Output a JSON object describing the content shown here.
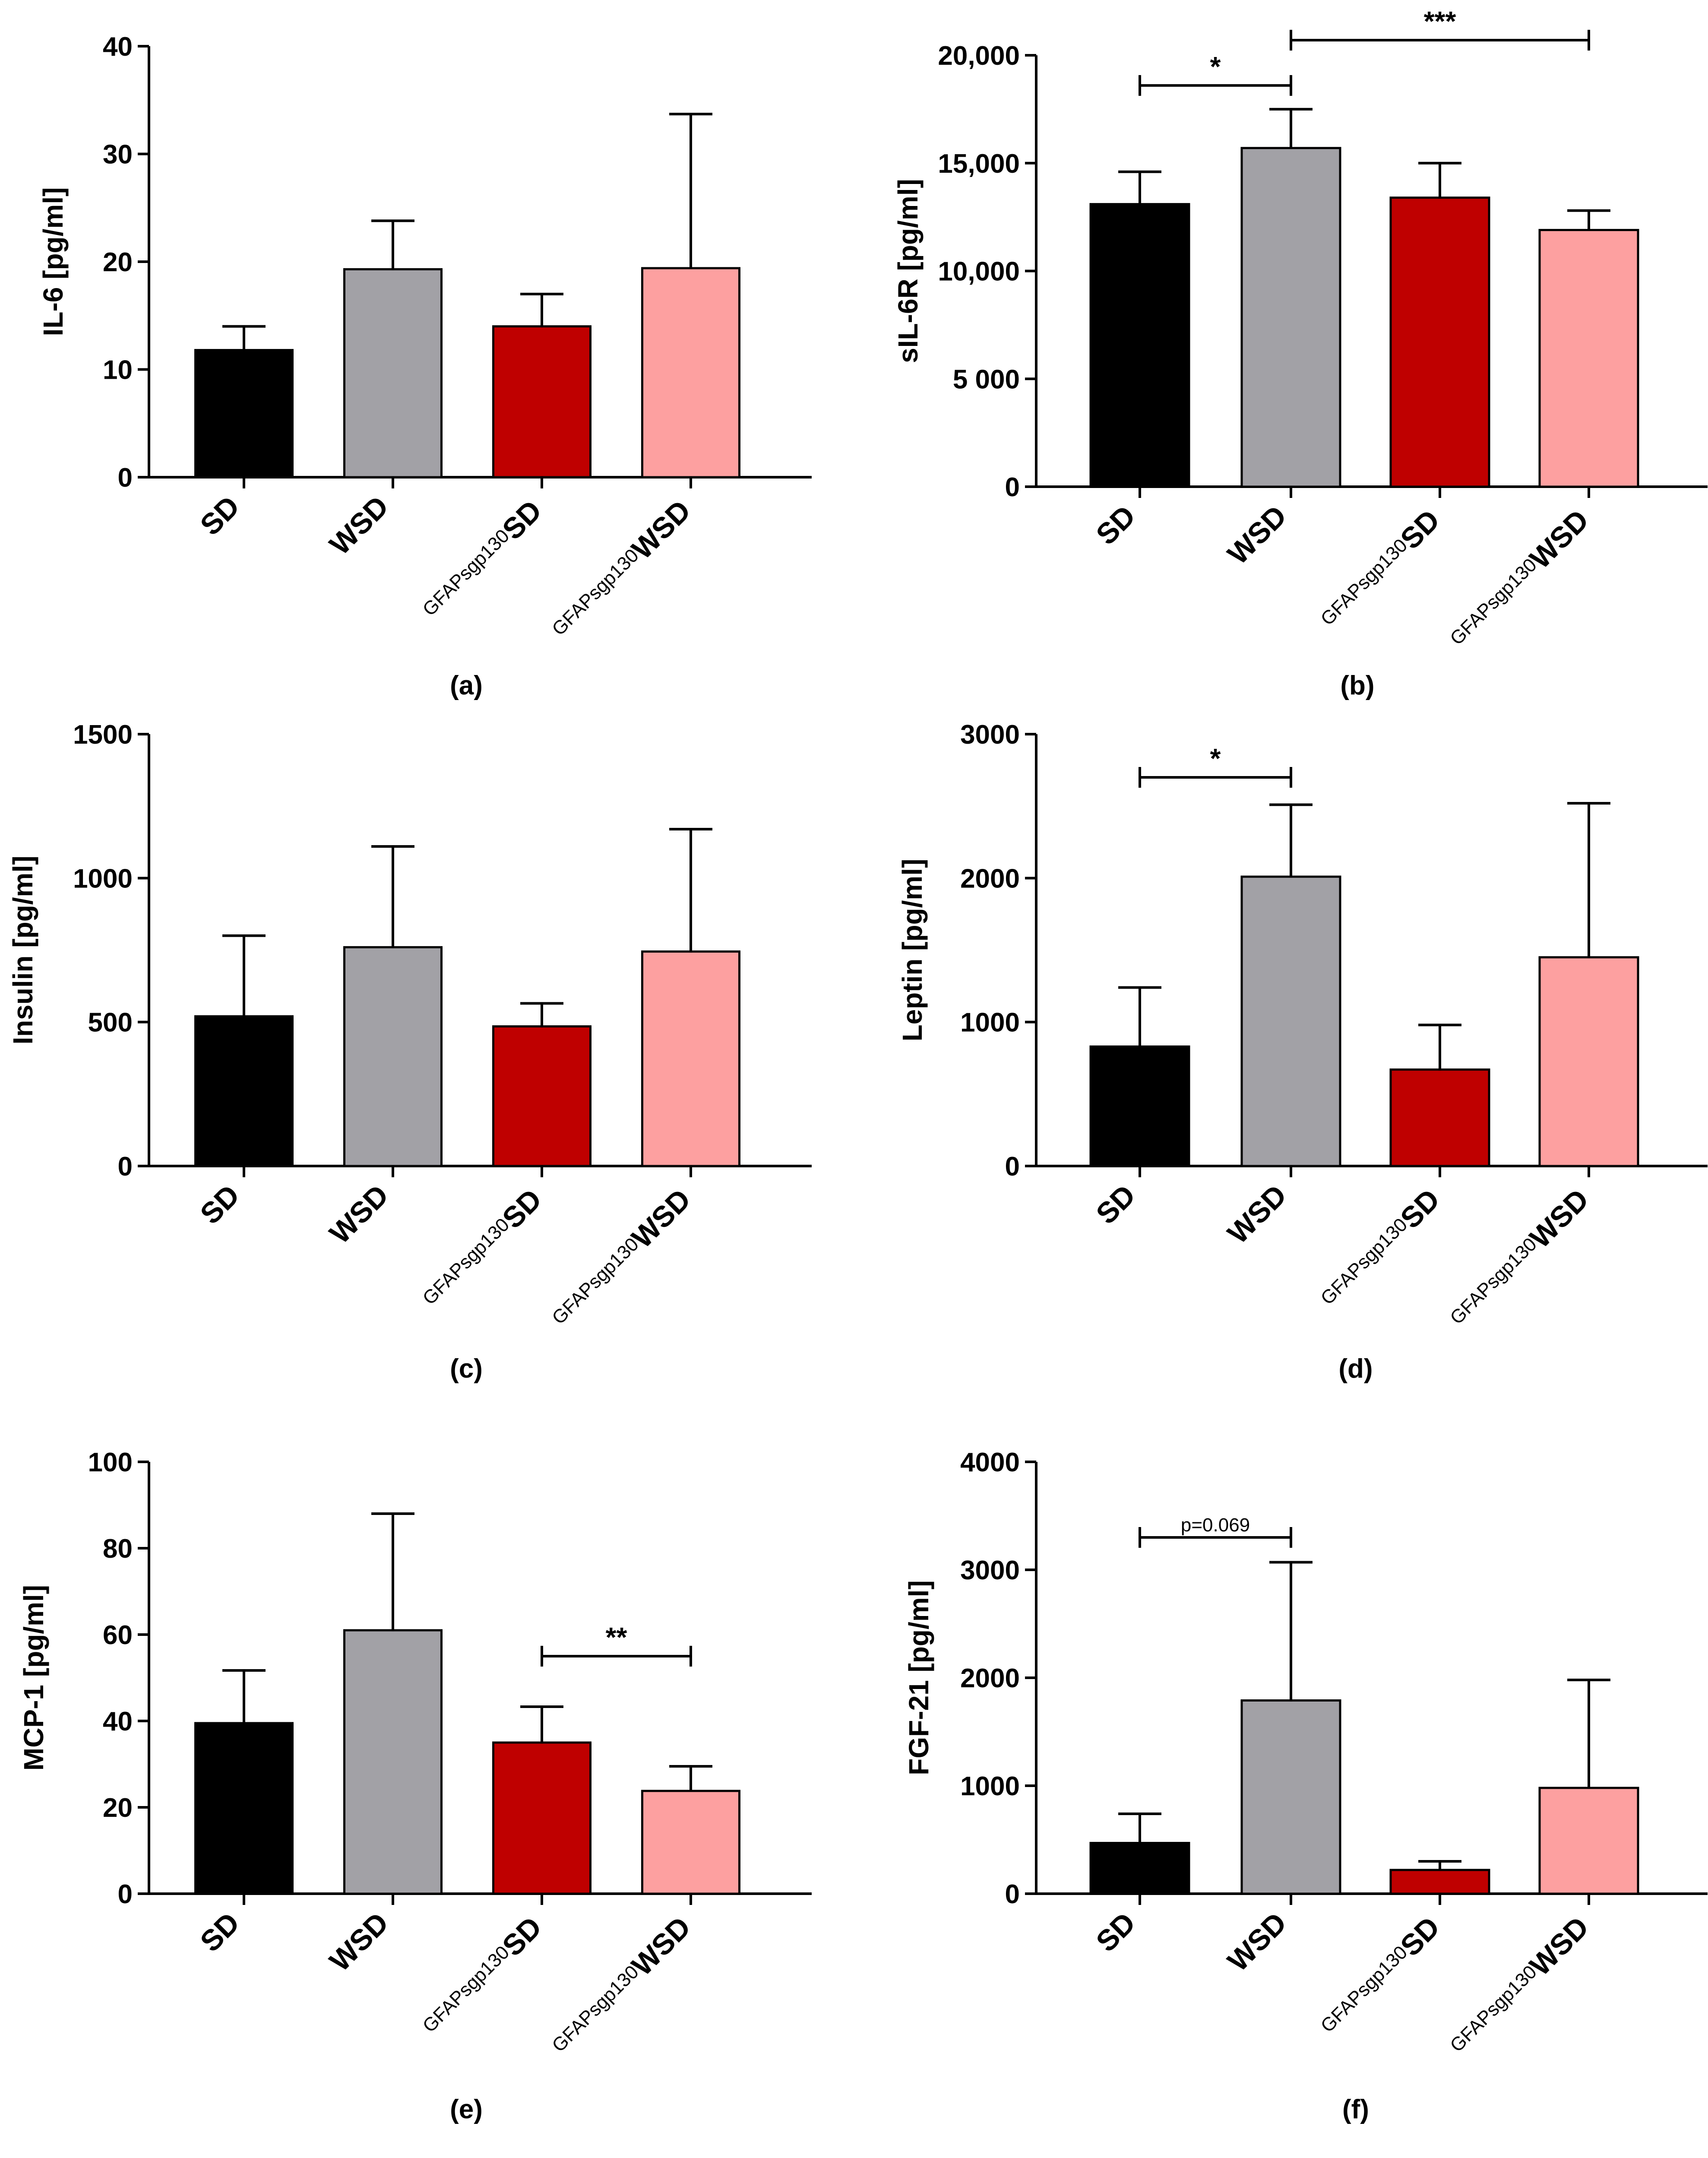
{
  "figure": {
    "group_prefix": "GFAPsgp130",
    "colors": {
      "SD": "#000000",
      "WSD": "#a2a1a6",
      "GFAPsgp130 SD": "#bf0000",
      "GFAPsgp130 WSD": "#fda0a0"
    }
  },
  "chart_data": [
    {
      "panel": "(a)",
      "type": "bar",
      "ylabel": "IL-6 [pg/ml]",
      "categories": [
        "SD",
        "WSD",
        "SD",
        "WSD"
      ],
      "category_prefix": [
        "",
        "",
        "GFAPsgp130",
        "GFAPsgp130"
      ],
      "values": [
        11.8,
        19.3,
        14.0,
        19.4
      ],
      "errors": [
        2.2,
        4.5,
        3.0,
        14.3
      ],
      "ylim": [
        0,
        40
      ],
      "yticks": [
        0,
        10,
        20,
        30,
        40
      ],
      "ytick_labels": [
        "0",
        "10",
        "20",
        "30",
        "40"
      ],
      "significance": []
    },
    {
      "panel": "(b)",
      "type": "bar",
      "ylabel": "sIL-6R [pg/ml]",
      "categories": [
        "SD",
        "WSD",
        "SD",
        "WSD"
      ],
      "category_prefix": [
        "",
        "",
        "GFAPsgp130",
        "GFAPsgp130"
      ],
      "values": [
        13100,
        15700,
        13400,
        11900
      ],
      "errors": [
        1500,
        1800,
        1600,
        900
      ],
      "ylim": [
        0,
        20000
      ],
      "yticks": [
        0,
        5000,
        10000,
        15000,
        20000
      ],
      "ytick_labels": [
        "0",
        "5 000",
        "10,000",
        "15,000",
        "20,000"
      ],
      "significance": [
        {
          "from": 0,
          "to": 1,
          "y": 18600,
          "label": "*"
        },
        {
          "from": 1,
          "to": 3,
          "y": 20700,
          "label": "***"
        }
      ]
    },
    {
      "panel": "(c)",
      "type": "bar",
      "ylabel": "Insulin [pg/ml]",
      "categories": [
        "SD",
        "WSD",
        "SD",
        "WSD"
      ],
      "category_prefix": [
        "",
        "",
        "GFAPsgp130",
        "GFAPsgp130"
      ],
      "values": [
        520,
        760,
        485,
        745
      ],
      "errors": [
        280,
        350,
        80,
        425
      ],
      "ylim": [
        0,
        1500
      ],
      "yticks": [
        0,
        500,
        1000,
        1500
      ],
      "ytick_labels": [
        "0",
        "500",
        "1000",
        "1500"
      ],
      "significance": []
    },
    {
      "panel": "(d)",
      "type": "bar",
      "ylabel": "Leptin [pg/ml]",
      "categories": [
        "SD",
        "WSD",
        "SD",
        "WSD"
      ],
      "category_prefix": [
        "",
        "",
        "GFAPsgp130",
        "GFAPsgp130"
      ],
      "values": [
        830,
        2010,
        670,
        1450
      ],
      "errors": [
        410,
        500,
        310,
        1070
      ],
      "ylim": [
        0,
        3000
      ],
      "yticks": [
        0,
        1000,
        2000,
        3000
      ],
      "ytick_labels": [
        "0",
        "1000",
        "2000",
        "3000"
      ],
      "significance": [
        {
          "from": 0,
          "to": 1,
          "y": 2700,
          "label": "*"
        }
      ]
    },
    {
      "panel": "(e)",
      "type": "bar",
      "ylabel": "MCP-1 [pg/ml]",
      "categories": [
        "SD",
        "WSD",
        "SD",
        "WSD"
      ],
      "category_prefix": [
        "",
        "",
        "GFAPsgp130",
        "GFAPsgp130"
      ],
      "values": [
        39.5,
        61.0,
        35.0,
        23.8
      ],
      "errors": [
        12.2,
        27.0,
        8.3,
        5.7
      ],
      "ylim": [
        0,
        100
      ],
      "yticks": [
        0,
        20,
        40,
        60,
        80,
        100
      ],
      "ytick_labels": [
        "0",
        "20",
        "40",
        "60",
        "80",
        "100"
      ],
      "significance": [
        {
          "from": 2,
          "to": 3,
          "y": 55,
          "label": "**"
        }
      ]
    },
    {
      "panel": "(f)",
      "type": "bar",
      "ylabel": "FGF-21 [pg/ml]",
      "categories": [
        "SD",
        "WSD",
        "SD",
        "WSD"
      ],
      "category_prefix": [
        "",
        "",
        "GFAPsgp130",
        "GFAPsgp130"
      ],
      "values": [
        470,
        1790,
        220,
        980
      ],
      "errors": [
        270,
        1280,
        80,
        1000
      ],
      "ylim": [
        0,
        4000
      ],
      "yticks": [
        0,
        1000,
        2000,
        3000,
        4000
      ],
      "ytick_labels": [
        "0",
        "1000",
        "2000",
        "3000",
        "4000"
      ],
      "significance": [
        {
          "from": 0,
          "to": 1,
          "y": 3300,
          "label": "p=0.069"
        }
      ]
    }
  ]
}
